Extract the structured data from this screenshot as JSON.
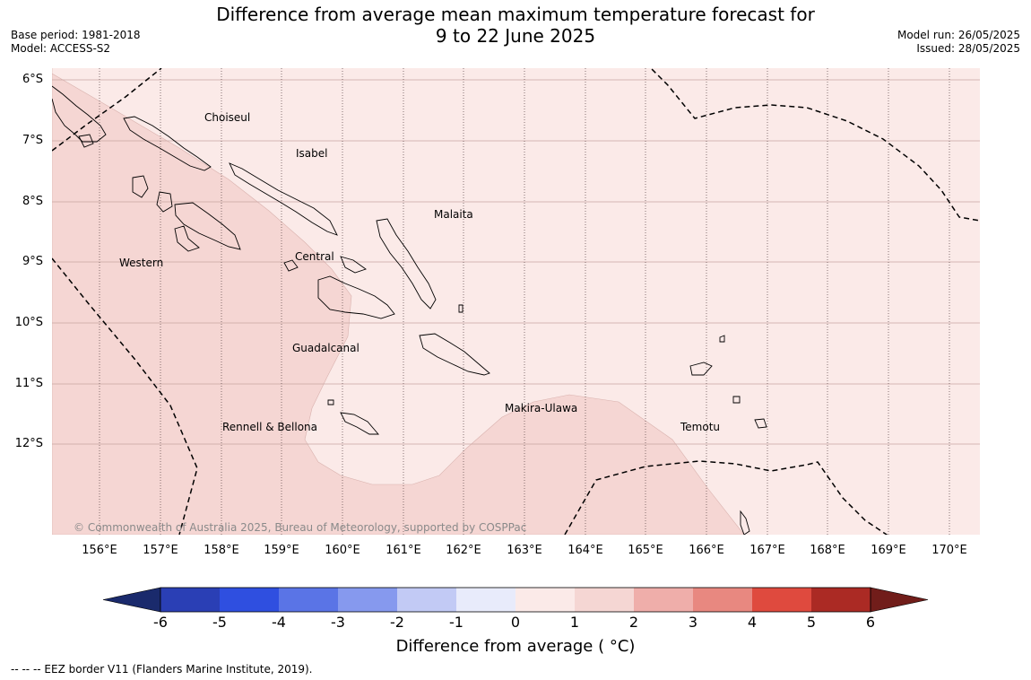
{
  "header": {
    "title_line1": "Difference from average mean maximum temperature forecast for",
    "title_line2": "9 to 22 June 2025",
    "base_period": "Base period: 1981-2018",
    "model": "Model: ACCESS-S2",
    "model_run": "Model run: 26/05/2025",
    "issued": "Issued: 28/05/2025"
  },
  "map": {
    "latitude_labels": [
      "6°S",
      "7°S",
      "8°S",
      "9°S",
      "10°S",
      "11°S",
      "12°S"
    ],
    "longitude_labels": [
      "156°E",
      "157°E",
      "158°E",
      "159°E",
      "160°E",
      "161°E",
      "162°E",
      "163°E",
      "164°E",
      "165°E",
      "166°E",
      "167°E",
      "168°E",
      "169°E",
      "170°E"
    ],
    "regions": [
      "Choiseul",
      "Isabel",
      "Malaita",
      "Western",
      "Central",
      "Guadalcanal",
      "Makira-Ulawa",
      "Temotu",
      "Rennell & Bellona"
    ],
    "copyright": "© Commonwealth of Australia 2025, Bureau of Meteorology, supported by COSPPac",
    "fill_colors": {
      "class_0_1": "#fbeae8",
      "class_1_2": "#f5d6d3"
    }
  },
  "colorbar": {
    "ticks": [
      "-6",
      "-5",
      "-4",
      "-3",
      "-2",
      "-1",
      "0",
      "1",
      "2",
      "3",
      "4",
      "5",
      "6"
    ],
    "colors": [
      "#1a2a6c",
      "#2a3fb5",
      "#2f4fe0",
      "#5a74e6",
      "#8699ee",
      "#c2caf5",
      "#e8ebfb",
      "#fbeae8",
      "#f5d6d3",
      "#efaeaa",
      "#e88880",
      "#df4a3e",
      "#ab2a24",
      "#711d1a"
    ],
    "label": "Difference from average ( °C)"
  },
  "footer": {
    "eez_note": "--  --  -- EEZ border V11 (Flanders Marine Institute, 2019)."
  }
}
